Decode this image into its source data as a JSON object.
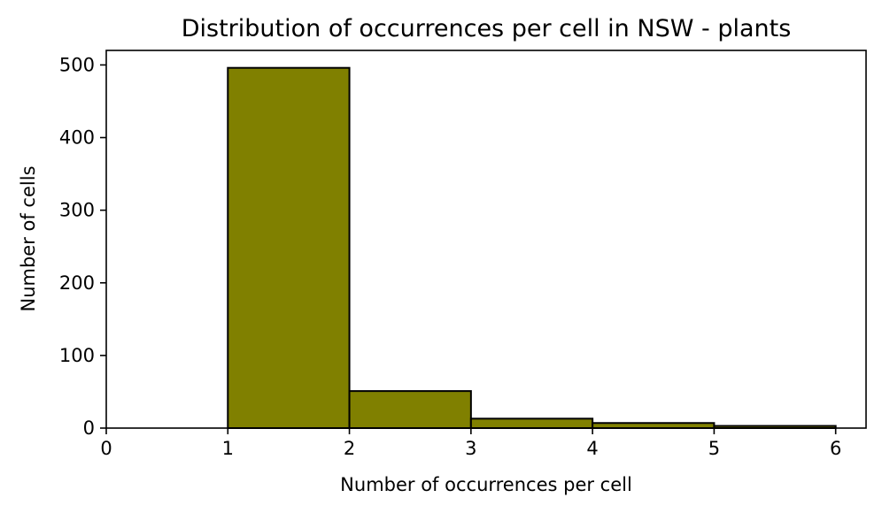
{
  "chart_data": {
    "type": "bar",
    "title": "Distribution of occurrences per cell in NSW - plants",
    "xlabel": "Number of occurrences per cell",
    "ylabel": "Number of cells",
    "bins": [
      {
        "x0": 1,
        "x1": 2,
        "value": 496
      },
      {
        "x0": 2,
        "x1": 3,
        "value": 51
      },
      {
        "x0": 3,
        "x1": 4,
        "value": 13
      },
      {
        "x0": 4,
        "x1": 5,
        "value": 7
      },
      {
        "x0": 5,
        "x1": 6,
        "value": 3
      }
    ],
    "xlim": [
      0,
      6.25
    ],
    "ylim": [
      0,
      520
    ],
    "xticks": [
      "0",
      "1",
      "2",
      "3",
      "4",
      "5",
      "6"
    ],
    "yticks": [
      "0",
      "100",
      "200",
      "300",
      "400",
      "500"
    ],
    "grid": false,
    "colors": {
      "bar_fill": "#808000",
      "bar_edge": "#000000"
    }
  }
}
